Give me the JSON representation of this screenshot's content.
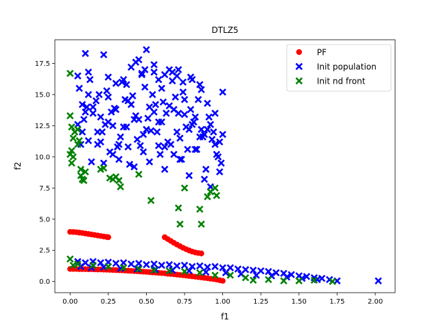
{
  "chart_data": {
    "type": "scatter",
    "title": "DTLZ5",
    "xlabel": "f1",
    "ylabel": "f2",
    "xlim": [
      -0.1,
      2.13
    ],
    "ylim": [
      -0.9,
      19.4
    ],
    "xticks": [
      0.0,
      0.25,
      0.5,
      0.75,
      1.0,
      1.25,
      1.5,
      1.75,
      2.0
    ],
    "xtick_labels": [
      "0.00",
      "0.25",
      "0.50",
      "0.75",
      "1.00",
      "1.25",
      "1.50",
      "1.75",
      "2.00"
    ],
    "yticks": [
      0.0,
      2.5,
      5.0,
      7.5,
      10.0,
      12.5,
      15.0,
      17.5
    ],
    "ytick_labels": [
      "0.0",
      "2.5",
      "5.0",
      "7.5",
      "10.0",
      "12.5",
      "15.0",
      "17.5"
    ],
    "legend_position": "top-right",
    "series": [
      {
        "name": "PF",
        "color": "#ff0000",
        "marker": "circle",
        "x": [
          0.0,
          0.02,
          0.04,
          0.06,
          0.08,
          0.1,
          0.12,
          0.14,
          0.16,
          0.18,
          0.2,
          0.22,
          0.24,
          0.25,
          0.0,
          0.02,
          0.04,
          0.06,
          0.08,
          0.1,
          0.12,
          0.14,
          0.16,
          0.18,
          0.2,
          0.22,
          0.24,
          0.26,
          0.28,
          0.3,
          0.32,
          0.34,
          0.36,
          0.38,
          0.4,
          0.42,
          0.44,
          0.46,
          0.48,
          0.5,
          0.52,
          0.54,
          0.56,
          0.58,
          0.6,
          0.62,
          0.64,
          0.66,
          0.68,
          0.7,
          0.72,
          0.74,
          0.76,
          0.78,
          0.8,
          0.82,
          0.84,
          0.86,
          0.88,
          0.9,
          0.92,
          0.94,
          0.96,
          0.98,
          1.0,
          0.62,
          0.64,
          0.66,
          0.68,
          0.7,
          0.72,
          0.74,
          0.76,
          0.78,
          0.8,
          0.82,
          0.84,
          0.86
        ],
        "y": [
          3.98,
          3.97,
          3.95,
          3.92,
          3.89,
          3.85,
          3.81,
          3.77,
          3.73,
          3.69,
          3.65,
          3.61,
          3.57,
          3.55,
          1.0,
          1.0,
          1.0,
          0.99,
          0.99,
          0.99,
          0.98,
          0.98,
          0.97,
          0.96,
          0.96,
          0.95,
          0.94,
          0.93,
          0.92,
          0.91,
          0.9,
          0.89,
          0.88,
          0.86,
          0.85,
          0.83,
          0.82,
          0.8,
          0.78,
          0.77,
          0.75,
          0.73,
          0.71,
          0.69,
          0.67,
          0.65,
          0.62,
          0.6,
          0.58,
          0.55,
          0.52,
          0.5,
          0.47,
          0.44,
          0.41,
          0.38,
          0.35,
          0.32,
          0.29,
          0.26,
          0.22,
          0.19,
          0.15,
          0.1,
          0.05,
          3.55,
          3.4,
          3.25,
          3.1,
          2.96,
          2.83,
          2.7,
          2.59,
          2.49,
          2.4,
          2.33,
          2.28,
          2.25
        ]
      },
      {
        "name": "Init population",
        "color": "#0000ff",
        "marker": "x",
        "x": [
          0.05,
          0.08,
          0.1,
          0.12,
          0.15,
          0.18,
          0.2,
          0.22,
          0.25,
          0.28,
          0.3,
          0.32,
          0.35,
          0.38,
          0.4,
          0.42,
          0.45,
          0.48,
          0.5,
          0.52,
          0.55,
          0.58,
          0.6,
          0.62,
          0.65,
          0.68,
          0.7,
          0.72,
          0.75,
          0.78,
          0.8,
          0.82,
          0.85,
          0.88,
          0.9,
          0.92,
          0.95,
          0.98,
          1.0,
          0.06,
          0.09,
          0.13,
          0.17,
          0.21,
          0.24,
          0.27,
          0.31,
          0.34,
          0.37,
          0.41,
          0.44,
          0.47,
          0.51,
          0.54,
          0.57,
          0.61,
          0.64,
          0.67,
          0.71,
          0.74,
          0.77,
          0.81,
          0.84,
          0.87,
          0.91,
          0.94,
          0.97,
          0.07,
          0.11,
          0.14,
          0.19,
          0.23,
          0.26,
          0.29,
          0.33,
          0.36,
          0.39,
          0.43,
          0.46,
          0.49,
          0.53,
          0.56,
          0.59,
          0.63,
          0.66,
          0.69,
          0.73,
          0.76,
          0.79,
          0.83,
          0.86,
          0.89,
          0.93,
          0.96,
          0.99,
          0.05,
          0.1,
          0.15,
          0.2,
          0.25,
          0.3,
          0.35,
          0.4,
          0.45,
          0.5,
          0.55,
          0.6,
          0.65,
          0.7,
          0.75,
          0.8,
          0.85,
          0.9,
          0.95,
          1.0,
          0.08,
          0.12,
          0.18,
          0.22,
          0.28,
          0.32,
          0.38,
          0.42,
          0.48,
          0.52,
          0.58,
          0.62,
          0.68,
          0.72,
          0.78,
          0.82,
          0.88,
          0.92,
          0.98,
          0.12,
          0.25,
          0.37,
          0.43,
          0.47,
          0.49,
          0.55,
          0.58,
          0.62,
          0.67,
          0.71,
          0.74,
          0.79,
          0.86,
          0.05,
          0.1,
          0.15,
          0.2,
          0.25,
          0.3,
          0.35,
          0.4,
          0.45,
          0.5,
          0.55,
          0.6,
          0.65,
          0.7,
          0.75,
          0.8,
          0.85,
          0.9,
          0.95,
          1.0,
          1.05,
          1.1,
          1.15,
          1.2,
          1.25,
          1.3,
          1.35,
          1.4,
          1.45,
          1.5,
          1.55,
          1.6,
          1.65,
          1.7,
          1.75,
          2.02,
          0.07,
          0.14,
          0.22,
          0.33,
          0.44,
          0.56,
          0.67,
          0.78,
          0.89,
          1.02,
          1.12,
          1.22,
          1.32,
          1.42,
          1.52,
          1.62
        ],
        "y": [
          16.5,
          14.2,
          18.3,
          15.0,
          13.5,
          12.0,
          11.2,
          18.2,
          14.8,
          12.5,
          15.9,
          11.0,
          16.2,
          14.5,
          17.2,
          13.0,
          17.8,
          11.8,
          18.6,
          14.0,
          16.8,
          12.8,
          15.5,
          10.8,
          17.0,
          13.8,
          16.5,
          11.5,
          14.6,
          12.2,
          16.2,
          13.2,
          15.8,
          11.8,
          14.3,
          12.6,
          13.5,
          11.2,
          15.2,
          15.5,
          13.0,
          16.2,
          14.5,
          12.0,
          15.3,
          13.6,
          10.8,
          16.0,
          12.4,
          14.9,
          11.4,
          16.7,
          13.1,
          15.0,
          12.0,
          14.4,
          11.2,
          16.1,
          13.5,
          15.2,
          10.6,
          12.8,
          14.6,
          11.6,
          13.2,
          12.0,
          10.0,
          11.0,
          14.0,
          9.6,
          15.0,
          12.6,
          10.4,
          13.9,
          11.6,
          14.6,
          9.4,
          13.3,
          10.9,
          15.6,
          12.1,
          14.2,
          10.2,
          13.5,
          11.0,
          14.8,
          9.8,
          12.4,
          13.8,
          10.6,
          12.2,
          9.0,
          11.4,
          10.2,
          9.5,
          12.6,
          13.6,
          14.0,
          13.2,
          12.8,
          13.8,
          12.4,
          14.2,
          13.0,
          12.2,
          13.6,
          12.8,
          14.1,
          12.0,
          13.4,
          12.6,
          11.6,
          12.2,
          11.0,
          11.8,
          12.0,
          11.3,
          11.0,
          9.5,
          10.2,
          9.8,
          10.8,
          9.2,
          10.4,
          9.6,
          10.9,
          9.0,
          10.2,
          9.8,
          8.5,
          10.6,
          8.2,
          7.6,
          8.8,
          16.8,
          16.4,
          15.8,
          17.6,
          16.6,
          17.0,
          17.4,
          16.2,
          16.6,
          16.8,
          17.0,
          16.0,
          16.4,
          15.4,
          1.6,
          1.5,
          1.6,
          1.5,
          1.55,
          1.45,
          1.5,
          1.4,
          1.45,
          1.35,
          1.4,
          1.3,
          1.35,
          1.25,
          1.3,
          1.2,
          1.25,
          1.15,
          1.2,
          1.1,
          1.1,
          1.0,
          0.95,
          0.9,
          0.85,
          0.8,
          0.7,
          0.65,
          0.55,
          0.45,
          0.4,
          0.3,
          0.25,
          0.15,
          0.05,
          0.05,
          1.2,
          1.1,
          1.15,
          1.05,
          1.0,
          0.95,
          0.9,
          0.85,
          0.75,
          0.7,
          0.6,
          0.5,
          0.45,
          0.35,
          0.25,
          0.15
        ]
      },
      {
        "name": "Init nd front",
        "color": "#008000",
        "marker": "x",
        "x": [
          0.0,
          0.0,
          0.01,
          0.01,
          0.02,
          0.02,
          0.03,
          0.0,
          0.01,
          0.05,
          0.06,
          0.07,
          0.08,
          0.09,
          0.1,
          0.05,
          0.07,
          0.08,
          0.2,
          0.22,
          0.26,
          0.28,
          0.3,
          0.32,
          0.33,
          0.45,
          0.53,
          0.71,
          0.72,
          0.75,
          0.85,
          0.86,
          0.9,
          0.92,
          0.95,
          0.96,
          0.0,
          0.02,
          0.05,
          0.15,
          0.25,
          0.35,
          0.45,
          0.55,
          0.65,
          0.75,
          0.85,
          0.95,
          1.05,
          1.15,
          1.2,
          1.3,
          1.4,
          1.5,
          1.6,
          1.72
        ],
        "y": [
          16.7,
          13.3,
          12.4,
          10.5,
          10.0,
          11.5,
          12.0,
          10.2,
          9.5,
          12.2,
          11.3,
          8.5,
          8.2,
          8.1,
          8.8,
          11.0,
          9.0,
          8.2,
          9.0,
          9.1,
          8.3,
          8.2,
          8.4,
          8.1,
          7.6,
          8.6,
          6.5,
          5.9,
          4.6,
          7.5,
          5.8,
          4.6,
          6.8,
          7.2,
          7.5,
          6.9,
          1.8,
          1.3,
          1.4,
          1.3,
          1.2,
          1.1,
          1.0,
          0.9,
          0.85,
          0.8,
          0.7,
          0.5,
          0.5,
          0.3,
          0.1,
          0.15,
          0.05,
          0.05,
          0.1,
          0.0
        ]
      }
    ]
  }
}
